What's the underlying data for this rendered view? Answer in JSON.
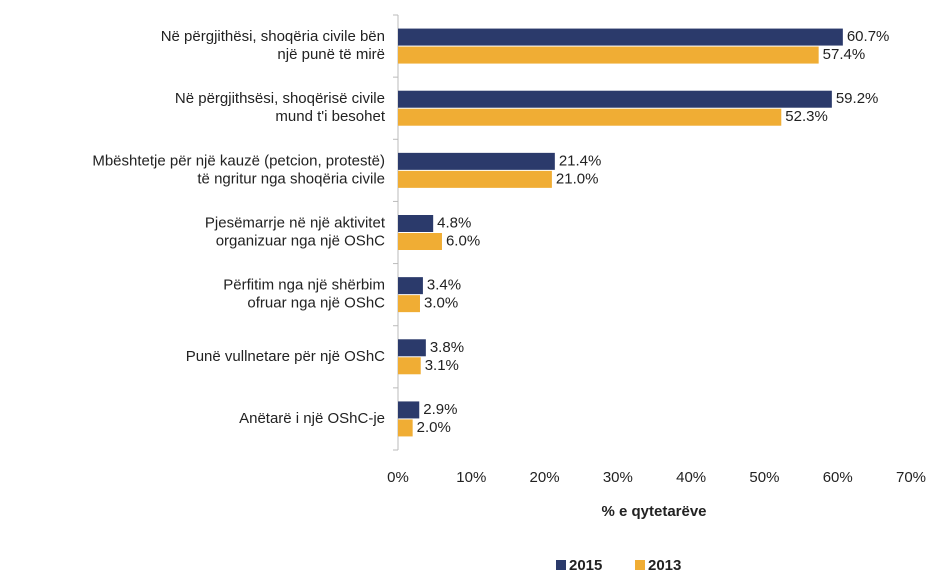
{
  "chart_data": {
    "type": "bar",
    "orientation": "horizontal",
    "categories": [
      [
        "Në përgjithësi, shoqëria civile bën",
        "një punë të mirë"
      ],
      [
        "Në përgjithsësi, shoqërisë civile",
        "mund t'i besohet"
      ],
      [
        "Mbështetje për një kauzë (petcion, protestë)",
        "të ngritur nga shoqëria civile"
      ],
      [
        "Pjesëmarrje në një aktivitet",
        "organizuar nga një OShC"
      ],
      [
        "Përfitim nga një shërbim",
        "ofruar nga një OShC"
      ],
      [
        "Punë vullnetare për një OShC"
      ],
      [
        "Anëtarë i një OShC-je"
      ]
    ],
    "series": [
      {
        "name": "2015",
        "color": "#2b3a6b",
        "values": [
          60.7,
          59.2,
          21.4,
          4.8,
          3.4,
          3.8,
          2.9
        ],
        "value_labels": [
          "60.7%",
          "59.2%",
          "21.4%",
          "4.8%",
          "3.4%",
          "3.8%",
          "2.9%"
        ]
      },
      {
        "name": "2013",
        "color": "#f0ad34",
        "values": [
          57.4,
          52.3,
          21.0,
          6.0,
          3.0,
          3.1,
          2.0
        ],
        "value_labels": [
          "57.4%",
          "52.3%",
          "21.0%",
          "6.0%",
          "3.0%",
          "3.1%",
          "2.0%"
        ]
      }
    ],
    "xlabel": "% e qytetarëve",
    "xlim": [
      0,
      70
    ],
    "xticks": [
      {
        "value": 0,
        "label": "0%"
      },
      {
        "value": 10,
        "label": "10%"
      },
      {
        "value": 20,
        "label": "20%"
      },
      {
        "value": 30,
        "label": "30%"
      },
      {
        "value": 40,
        "label": "40%"
      },
      {
        "value": 50,
        "label": "50%"
      },
      {
        "value": 60,
        "label": "60%"
      },
      {
        "value": 70,
        "label": "70%"
      }
    ],
    "grid": false,
    "legend": "bottom"
  }
}
